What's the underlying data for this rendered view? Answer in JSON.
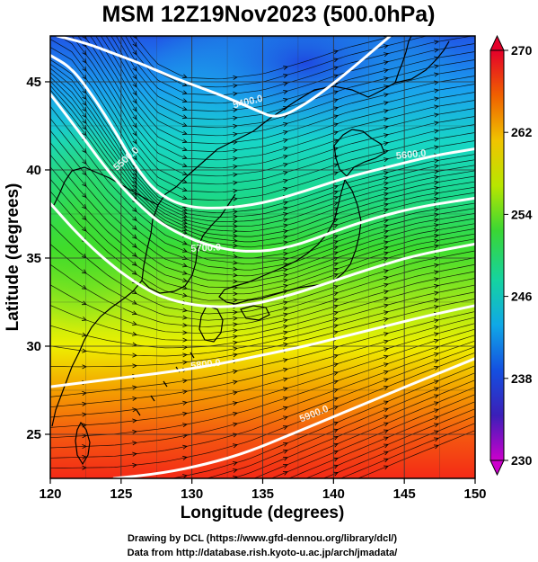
{
  "figure": {
    "title": "MSM 12Z19Nov2023 (500.0hPa)",
    "xlabel": "Longitude (degrees)",
    "ylabel": "Latitude  (degrees)",
    "credit_line1": "Drawing by DCL (https://www.gfd-dennou.org/library/dcl/)",
    "credit_line2": "Data from http://database.rish.kyoto-u.ac.jp/arch/jmadata/"
  },
  "map": {
    "lon_range": [
      120,
      150
    ],
    "lat_range": [
      22.5,
      47.6
    ],
    "x_ticks": [
      "120",
      "125",
      "130",
      "135",
      "140",
      "145",
      "150"
    ],
    "y_ticks": [
      "25",
      "30",
      "35",
      "40",
      "45"
    ],
    "grid": true,
    "fill_variable_range": [
      230,
      270
    ],
    "contour_labels": [
      {
        "text": "5400.0",
        "lon": 134,
        "lat": 43.7,
        "angle": -14
      },
      {
        "text": "5500.0",
        "lon": 125.5,
        "lat": 40.5,
        "angle": -42
      },
      {
        "text": "5600.0",
        "lon": 145.5,
        "lat": 40.7,
        "angle": -6
      },
      {
        "text": "5700.0",
        "lon": 131,
        "lat": 35.4,
        "angle": -3
      },
      {
        "text": "5800.0",
        "lon": 131,
        "lat": 28.8,
        "angle": -7
      },
      {
        "text": "5900.0",
        "lon": 138.7,
        "lat": 26.0,
        "angle": -22
      }
    ],
    "contours": [
      {
        "lon": [
          120.5,
          122.5,
          124.5,
          126.5,
          128.5,
          130.5,
          132.5,
          134.5,
          136,
          138,
          140.5,
          144
        ],
        "lat": [
          47.6,
          47.2,
          46.6,
          46.0,
          45.3,
          44.7,
          44.1,
          43.4,
          42.9,
          43.7,
          45.2,
          47.6
        ]
      },
      {
        "lon": [
          120,
          121.5,
          123,
          124.5,
          126,
          127.5,
          129.5,
          132,
          135,
          138,
          141,
          144,
          147,
          150
        ],
        "lat": [
          46.5,
          45.8,
          44.2,
          42.3,
          40.2,
          38.7,
          37.9,
          37.8,
          38.1,
          38.8,
          39.6,
          40.2,
          40.8,
          41.2
        ]
      },
      {
        "lon": [
          120,
          122,
          124,
          126,
          128,
          131,
          134,
          137,
          140,
          143,
          146,
          150
        ],
        "lat": [
          44.3,
          42.2,
          40.0,
          38.2,
          36.8,
          35.7,
          35.3,
          35.6,
          36.5,
          37.3,
          37.9,
          38.4
        ]
      },
      {
        "lon": [
          120,
          122,
          124,
          126,
          128,
          131,
          134,
          137,
          140,
          143,
          146,
          150
        ],
        "lat": [
          38.1,
          36.3,
          34.8,
          33.6,
          32.7,
          32.2,
          32.3,
          32.9,
          33.7,
          34.5,
          35.2,
          35.8
        ]
      },
      {
        "lon": [
          120,
          123,
          126,
          129,
          132,
          135,
          138,
          141,
          144,
          147,
          150
        ],
        "lat": [
          27.7,
          28.0,
          28.3,
          28.6,
          29.0,
          29.5,
          30.0,
          30.6,
          31.2,
          31.8,
          32.3
        ]
      },
      {
        "lon": [
          124.5,
          128,
          131,
          134,
          137,
          140,
          143,
          146,
          150
        ],
        "lat": [
          22.5,
          22.8,
          23.3,
          24.0,
          25.0,
          26.0,
          27.0,
          28.0,
          29.3
        ]
      }
    ]
  },
  "colorbar": {
    "ticks": [
      "270",
      "262",
      "254",
      "246",
      "238",
      "230"
    ],
    "colors": [
      "#e4002a",
      "#f06000",
      "#f0c400",
      "#b8e600",
      "#3ad634",
      "#15d3a0",
      "#10a8e6",
      "#1450e0",
      "#3b1fb8",
      "#cc00cc"
    ]
  }
}
